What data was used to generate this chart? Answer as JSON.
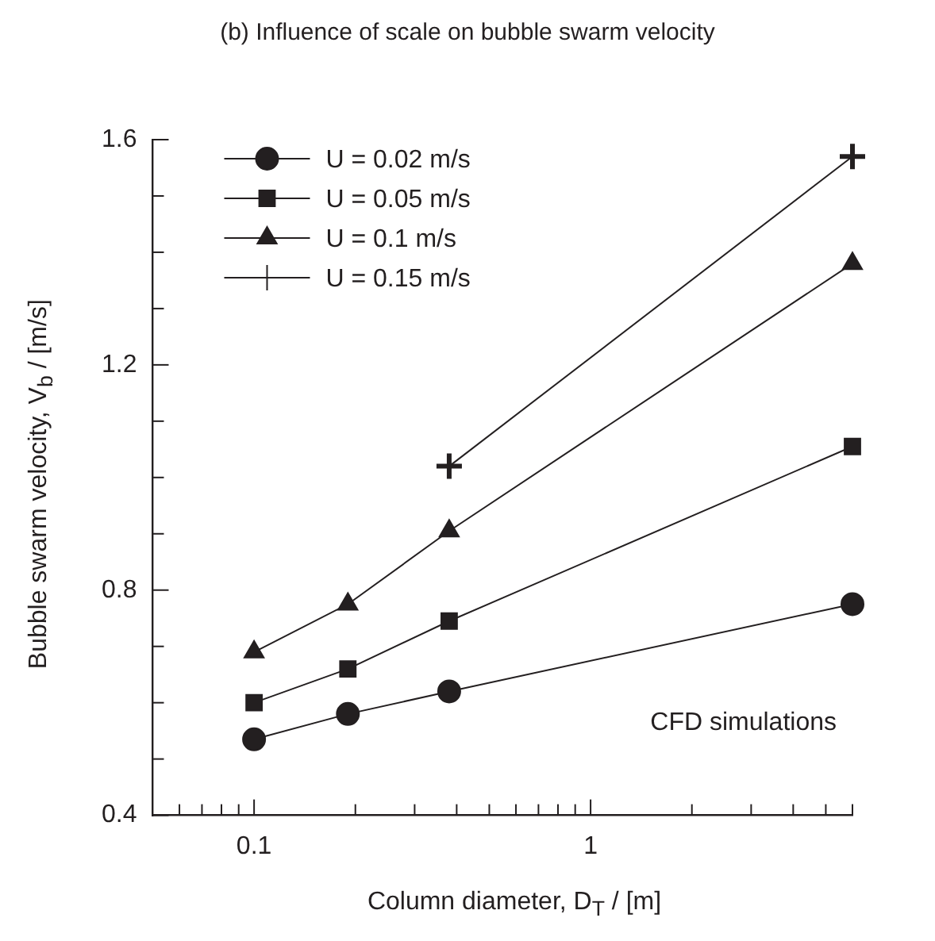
{
  "chart_data": {
    "type": "line",
    "title": "(b) Influence of scale on bubble swarm velocity",
    "xlabel": "Column diameter, D$_{T}$ / [m]",
    "ylabel": "Bubble swarm velocity, V$_{b}$ / [m/s]",
    "log": "x",
    "xlim": [
      0.05,
      6
    ],
    "ylim": [
      0.4,
      1.6
    ],
    "xticks": [
      {
        "value": 0.06,
        "label": null
      },
      {
        "value": 0.07,
        "label": null
      },
      {
        "value": 0.08,
        "label": null
      },
      {
        "value": 0.09,
        "label": null
      },
      0.1,
      {
        "value": 0.2,
        "label": null
      },
      {
        "value": 0.3,
        "label": null
      },
      {
        "value": 0.4,
        "label": null
      },
      {
        "value": 0.5,
        "label": null
      },
      {
        "value": 0.6,
        "label": null
      },
      {
        "value": 0.7,
        "label": null
      },
      {
        "value": 0.8,
        "label": null
      },
      {
        "value": 0.9,
        "label": null
      },
      1,
      {
        "value": 2,
        "label": null
      },
      {
        "value": 3,
        "label": null
      },
      {
        "value": 4,
        "label": null
      },
      {
        "value": 5,
        "label": null
      },
      {
        "value": 6,
        "label": null
      }
    ],
    "yticks": [
      0.4,
      {
        "value": 0.5,
        "label": null
      },
      {
        "value": 0.6,
        "label": null
      },
      {
        "value": 0.7,
        "label": null
      },
      0.8,
      {
        "value": 0.9,
        "label": null
      },
      {
        "value": 1.0,
        "label": null
      },
      {
        "value": 1.1,
        "label": null
      },
      1.2,
      {
        "value": 1.3,
        "label": null
      },
      {
        "value": 1.4,
        "label": null
      },
      {
        "value": 1.5,
        "label": null
      },
      1.6
    ],
    "legend": "top left",
    "grid": false,
    "line_style": "solid",
    "annotations": [
      "CFD simulations"
    ],
    "series": [
      {
        "name": "U = 0.02 m/s",
        "color": "#231f20",
        "marker": "circle",
        "x": [
          0.1,
          0.19,
          0.38,
          6
        ],
        "values": [
          0.535,
          0.58,
          0.62,
          0.775
        ]
      },
      {
        "name": "U = 0.05 m/s",
        "color": "#231f20",
        "marker": "square",
        "x": [
          0.1,
          0.19,
          0.38,
          6
        ],
        "values": [
          0.6,
          0.66,
          0.745,
          1.055
        ]
      },
      {
        "name": "U = 0.1 m/s",
        "color": "#231f20",
        "marker": "triangle",
        "x": [
          0.1,
          0.19,
          0.38,
          6
        ],
        "values": [
          0.69,
          0.775,
          0.905,
          1.38
        ]
      },
      {
        "name": "U = 0.15 m/s",
        "color": "#231f20",
        "marker": "cross",
        "x": [
          0.38,
          6
        ],
        "values": [
          1.02,
          1.57
        ]
      }
    ]
  }
}
